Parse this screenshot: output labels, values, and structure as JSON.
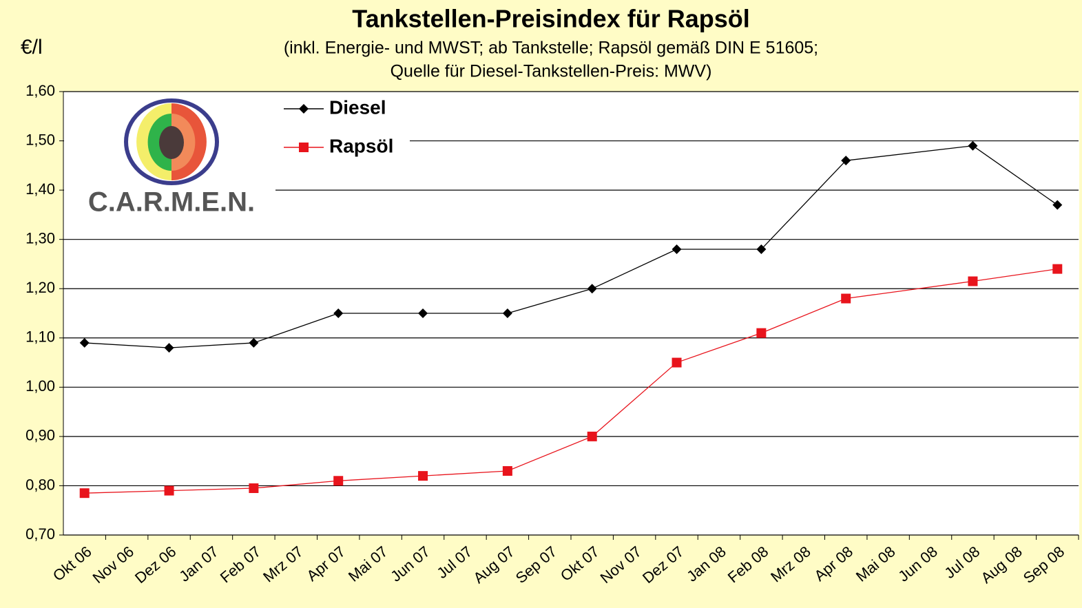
{
  "chart_data": {
    "type": "line",
    "title": "Tankstellen-Preisindex für Rapsöl",
    "subtitle": [
      "(inkl. Energie- und MWST; ab Tankstelle; Rapsöl gemäß DIN E 51605;",
      "Quelle für Diesel-Tankstellen-Preis: MWV)"
    ],
    "y_label": "€/l",
    "logo_text": "C.A.R.M.E.N.",
    "categories": [
      "Okt 06",
      "Nov 06",
      "Dez 06",
      "Jan 07",
      "Feb 07",
      "Mrz 07",
      "Apr 07",
      "Mai 07",
      "Jun 07",
      "Jul 07",
      "Aug 07",
      "Sep 07",
      "Okt 07",
      "Nov 07",
      "Dez 07",
      "Jan 08",
      "Feb 08",
      "Mrz 08",
      "Apr 08",
      "Mai 08",
      "Jun 08",
      "Jul 08",
      "Aug 08",
      "Sep 08"
    ],
    "series": [
      {
        "name": "Diesel",
        "color": "#000000",
        "marker": "diamond",
        "values": [
          1.09,
          null,
          1.08,
          null,
          1.09,
          null,
          1.15,
          null,
          1.15,
          null,
          1.15,
          null,
          1.2,
          null,
          1.28,
          null,
          1.28,
          null,
          1.46,
          null,
          null,
          1.49,
          null,
          1.37
        ]
      },
      {
        "name": "Rapsöl",
        "color": "#e8141c",
        "marker": "square",
        "values": [
          0.785,
          null,
          0.79,
          null,
          0.795,
          null,
          0.81,
          null,
          0.82,
          null,
          0.83,
          null,
          0.9,
          null,
          1.05,
          null,
          1.11,
          null,
          1.18,
          null,
          null,
          1.215,
          null,
          1.24
        ]
      }
    ],
    "ylim": [
      0.7,
      1.6
    ],
    "yticks": [
      {
        "value": 0.7,
        "label": "0,70"
      },
      {
        "value": 0.8,
        "label": "0,80"
      },
      {
        "value": 0.9,
        "label": "0,90"
      },
      {
        "value": 1.0,
        "label": "1,00"
      },
      {
        "value": 1.1,
        "label": "1,10"
      },
      {
        "value": 1.2,
        "label": "1,20"
      },
      {
        "value": 1.3,
        "label": "1,30"
      },
      {
        "value": 1.4,
        "label": "1,40"
      },
      {
        "value": 1.5,
        "label": "1,50"
      },
      {
        "value": 1.6,
        "label": "1,60"
      }
    ],
    "grid": true
  }
}
